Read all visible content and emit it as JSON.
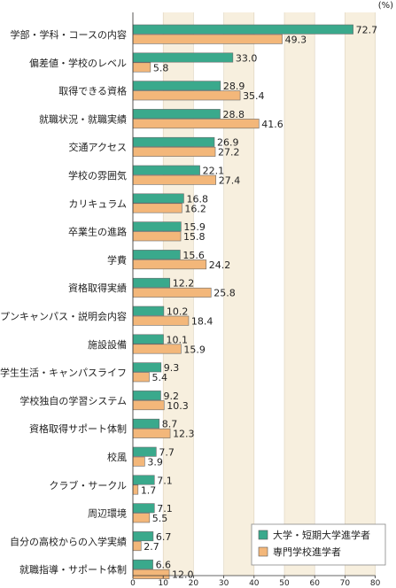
{
  "chart_data": {
    "type": "bar",
    "orientation": "horizontal",
    "unit": "(%)",
    "xlim": [
      0,
      80
    ],
    "xticks": [
      0,
      10,
      20,
      30,
      40,
      50,
      60,
      70,
      80
    ],
    "categories": [
      "学部・学科・コースの内容",
      "偏差値・学校のレベル",
      "取得できる資格",
      "就職状況・就職実績",
      "交通アクセス",
      "学校の雰囲気",
      "カリキュラム",
      "卒業生の進路",
      "学費",
      "資格取得実績",
      "オープンキャンパス・説明会内容",
      "施設設備",
      "学生生活・キャンパスライフ",
      "学校独自の学習システム",
      "資格取得サポート体制",
      "校風",
      "クラブ・サークル",
      "周辺環境",
      "自分の高校からの入学実績",
      "就職指導・サポート体制"
    ],
    "series": [
      {
        "name": "大学・短期大学進学者",
        "color": "#3aa98c",
        "values": [
          72.7,
          33.0,
          28.9,
          28.8,
          26.9,
          22.1,
          16.8,
          15.9,
          15.6,
          12.2,
          10.2,
          10.1,
          9.3,
          9.2,
          8.7,
          7.7,
          7.1,
          7.1,
          6.7,
          6.6
        ],
        "labels": [
          "72.7",
          "33.0",
          "28.9",
          "28.8",
          "26.9",
          "22.1",
          "16.8",
          "15.9",
          "15.6",
          "12.2",
          "10.2",
          "10.1",
          "9.3",
          "9.2",
          "8.7",
          "7.7",
          "7.1",
          "7.1",
          "6.7",
          "6.6"
        ]
      },
      {
        "name": "専門学校進学者",
        "color": "#f3b77a",
        "values": [
          49.3,
          5.8,
          35.4,
          41.6,
          27.2,
          27.4,
          16.2,
          15.8,
          24.2,
          25.8,
          18.4,
          15.9,
          5.4,
          10.3,
          12.3,
          3.9,
          1.7,
          5.5,
          2.7,
          12.0
        ],
        "labels": [
          "49.3",
          "5.8",
          "35.4",
          "41.6",
          "27.2",
          "27.4",
          "16.2",
          "15.8",
          "24.2",
          "25.8",
          "18.4",
          "15.9",
          "5.4",
          "10.3",
          "12.3",
          "3.9",
          "1.7",
          "5.5",
          "2.7",
          "12.0"
        ]
      }
    ],
    "legend_position": "bottom-right",
    "band_color": "#f7efde",
    "grid": true
  }
}
